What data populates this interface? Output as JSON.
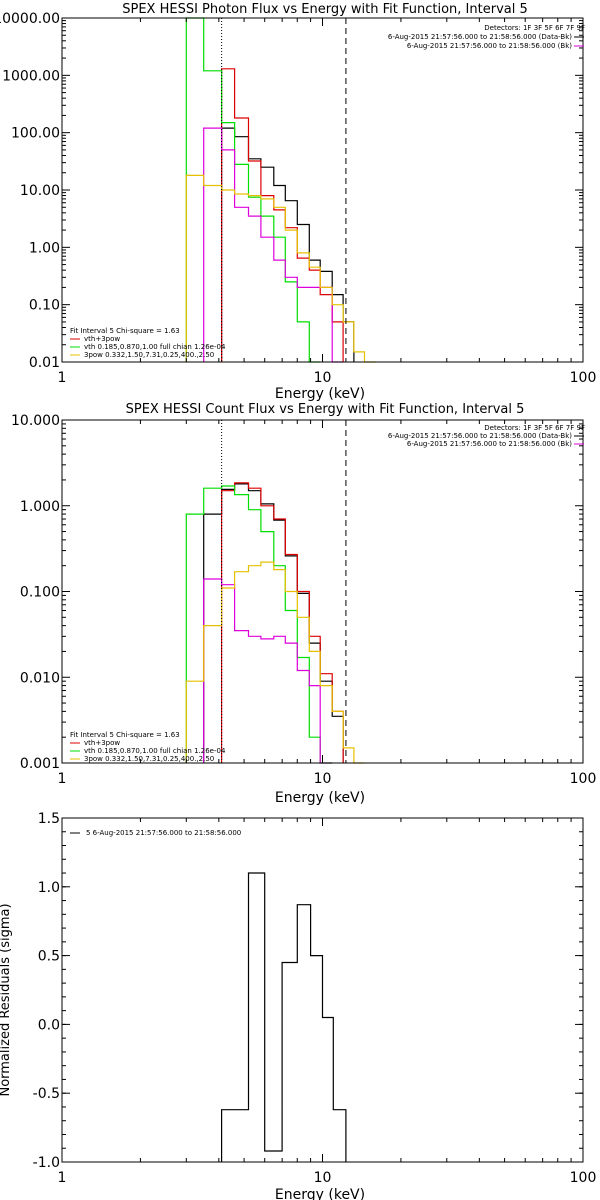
{
  "colors": {
    "black": "#000000",
    "red": "#dd0000",
    "green": "#00dd00",
    "magenta": "#dd00dd",
    "gold": "#e6c000"
  },
  "chart_data": [
    {
      "type": "line",
      "title": "SPEX HESSI Photon Flux vs Energy with Fit Function, Interval 5",
      "xlabel": "Energy (keV)",
      "ylabel": "",
      "xscale": "log",
      "yscale": "log",
      "xlim": [
        1,
        100
      ],
      "ylim": [
        0.01,
        10000
      ],
      "xticks": [
        1,
        10,
        100
      ],
      "xtick_labels": [
        "1",
        "10",
        "100"
      ],
      "yticks": [
        0.01,
        0.1,
        1,
        10,
        100,
        1000,
        10000
      ],
      "ytick_labels": [
        "0.01",
        "0.10",
        "1.00",
        "10.00",
        "100.00",
        "1000.00",
        "10000.00"
      ],
      "vlines": [
        {
          "x": 4.1,
          "style": "dotted"
        },
        {
          "x": 12.3,
          "style": "dashed"
        }
      ],
      "legend_top": [
        "Detectors: 1F 3F 5F 6F 7F 9F",
        "6-Aug-2015 21:57:56.000 to 21:58:56.000 (Data-Bk)",
        "6-Aug-2015 21:57:56.000 to 21:58:56.000 (Bk)"
      ],
      "legend_bottom": [
        "Fit Interval 5   Chi-square = 1.63",
        "vth+3pow",
        "vth 0.185,0.870,1.00  full chian 1.26e-04",
        "3pow 0.332,1.50,7.31,0.25,400.,2.50"
      ],
      "edges": [
        3.0,
        3.5,
        4.1,
        4.6,
        5.2,
        5.8,
        6.5,
        7.2,
        8.0,
        8.9,
        9.8,
        10.9,
        12.0,
        13.2,
        14.5,
        16.0
      ],
      "series": [
        {
          "color_key": "black",
          "values": [
            null,
            null,
            120,
            85,
            35,
            25,
            12,
            6.5,
            2.5,
            0.6,
            0.38,
            0.15,
            0.05,
            null,
            null
          ]
        },
        {
          "color_key": "red",
          "values": [
            null,
            null,
            1300,
            180,
            32,
            8.0,
            4.5,
            2.2,
            0.65,
            0.4,
            0.15,
            0.05,
            null,
            null,
            null
          ]
        },
        {
          "color_key": "green",
          "values": [
            10000,
            1200,
            150,
            28,
            7.5,
            3.5,
            1.5,
            0.25,
            0.05,
            0.01,
            null,
            null,
            null,
            null,
            null
          ]
        },
        {
          "color_key": "magenta",
          "values": [
            null,
            120,
            50,
            5.0,
            3.5,
            1.5,
            0.6,
            0.3,
            0.2,
            0.2,
            0.2,
            0.01,
            null,
            null,
            null
          ]
        },
        {
          "color_key": "gold",
          "values": [
            18,
            12,
            10,
            8.5,
            8.0,
            7.0,
            5.0,
            2.0,
            0.8,
            0.45,
            0.2,
            0.1,
            0.05,
            0.015,
            0.01
          ]
        }
      ]
    },
    {
      "type": "line",
      "title": "SPEX HESSI Count Flux vs Energy with Fit Function, Interval 5",
      "xlabel": "Energy (keV)",
      "ylabel": "",
      "xscale": "log",
      "yscale": "log",
      "xlim": [
        1,
        100
      ],
      "ylim": [
        0.001,
        10
      ],
      "xticks": [
        1,
        10,
        100
      ],
      "xtick_labels": [
        "1",
        "10",
        "100"
      ],
      "yticks": [
        0.001,
        0.01,
        0.1,
        1,
        10
      ],
      "ytick_labels": [
        "0.001",
        "0.010",
        "0.100",
        "1.000",
        "10.000"
      ],
      "vlines": [
        {
          "x": 4.1,
          "style": "dotted"
        },
        {
          "x": 12.3,
          "style": "dashed"
        }
      ],
      "legend_top": [
        "Detectors: 1F 3F 5F 6F 7F 9F",
        "6-Aug-2015 21:57:56.000 to 21:58:56.000 (Data-Bk)",
        "6-Aug-2015 21:57:56.000 to 21:58:56.000 (Bk)"
      ],
      "legend_bottom": [
        "Fit Interval 5   Chi-square = 1.63",
        "vth+3pow",
        "vth 0.185,0.870,1.00  full chian 1.26e-04",
        "3pow 0.332,1.50,7.31,0.25,400.,2.50"
      ],
      "edges": [
        3.0,
        3.5,
        4.1,
        4.6,
        5.2,
        5.8,
        6.5,
        7.2,
        8.0,
        8.9,
        9.8,
        10.9,
        12.0,
        13.2,
        14.5,
        16.0
      ],
      "series": [
        {
          "color_key": "black",
          "values": [
            null,
            0.8,
            1.55,
            1.8,
            1.5,
            1.05,
            0.68,
            0.26,
            0.095,
            0.025,
            0.009,
            0.0035,
            null,
            null,
            null
          ]
        },
        {
          "color_key": "red",
          "values": [
            null,
            null,
            1.5,
            1.85,
            1.6,
            1.0,
            0.7,
            0.27,
            0.1,
            0.03,
            0.011,
            0.004,
            null,
            null,
            null
          ]
        },
        {
          "color_key": "green",
          "values": [
            0.8,
            1.6,
            1.7,
            1.35,
            0.9,
            0.5,
            0.2,
            0.06,
            0.017,
            0.002,
            0.001,
            null,
            null,
            null,
            null
          ]
        },
        {
          "color_key": "magenta",
          "values": [
            null,
            0.14,
            0.12,
            0.035,
            0.03,
            0.028,
            0.03,
            0.025,
            0.012,
            0.008,
            0.001,
            null,
            null,
            null,
            null
          ]
        },
        {
          "color_key": "gold",
          "values": [
            0.009,
            0.04,
            0.11,
            0.17,
            0.2,
            0.22,
            0.18,
            0.1,
            0.05,
            0.02,
            0.008,
            0.004,
            0.0015,
            0.001,
            null
          ]
        }
      ]
    },
    {
      "type": "line",
      "title": "",
      "xlabel": "Energy (keV)",
      "ylabel": "Normalized Residuals (sigma)",
      "xscale": "log",
      "yscale": "linear",
      "xlim": [
        1,
        100
      ],
      "ylim": [
        -1.0,
        1.5
      ],
      "xticks": [
        1,
        10,
        100
      ],
      "xtick_labels": [
        "1",
        "10",
        "100"
      ],
      "yticks": [
        -1.0,
        -0.5,
        0.0,
        0.5,
        1.0,
        1.5
      ],
      "ytick_labels": [
        "-1.0",
        "-0.5",
        "0.0",
        "0.5",
        "1.0",
        "1.5"
      ],
      "vlines": [],
      "legend_top": [],
      "legend_bottom": [],
      "legend_entry": "5  6-Aug-2015 21:57:56.000 to 21:58:56.000",
      "edges": [
        4.1,
        5.2,
        6.0,
        7.0,
        8.0,
        9.0,
        10.0,
        11.0,
        12.3
      ],
      "series": [
        {
          "color_key": "black",
          "values": [
            -0.62,
            1.1,
            -0.92,
            0.45,
            0.87,
            0.5,
            0.05,
            -0.62
          ]
        }
      ]
    }
  ]
}
